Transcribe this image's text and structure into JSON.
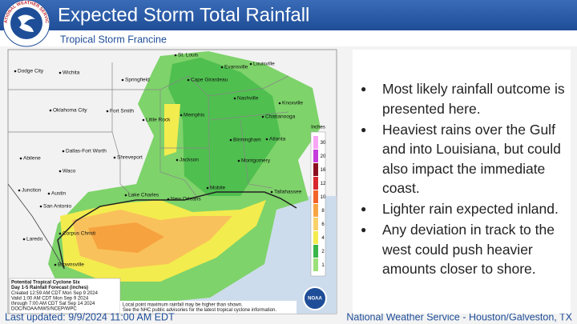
{
  "header": {
    "title": "Expected Storm Total Rainfall",
    "subtitle": "Tropical Storm Francine",
    "logo_text": "NATIONAL WEATHER SERVICE"
  },
  "map": {
    "cities": [
      "Dodge City",
      "Wichita",
      "St. Louis",
      "Evansville",
      "Louisville",
      "Springfield",
      "Cape Girardeau",
      "Nashville",
      "Knoxville",
      "Oklahoma City",
      "Fort Smith",
      "Memphis",
      "Little Rock",
      "Chattanooga",
      "Birmingham",
      "Atlanta",
      "Dallas-Fort Worth",
      "Shreveport",
      "Jackson",
      "Montgomery",
      "Abilene",
      "Waco",
      "Junction",
      "Austin",
      "Lake Charles",
      "New Orleans",
      "Mobile",
      "Tallahassee",
      "San Antonio",
      "Laredo",
      "Corpus Christi",
      "Brownsville"
    ],
    "legend": {
      "title": "Inches",
      "items": [
        {
          "value": 30,
          "color": "#f7a6f5"
        },
        {
          "value": 20,
          "color": "#c53ddb"
        },
        {
          "value": 16,
          "color": "#8b0f1e"
        },
        {
          "value": 12,
          "color": "#d7262e"
        },
        {
          "value": 10,
          "color": "#f2642a"
        },
        {
          "value": 8,
          "color": "#f7a544"
        },
        {
          "value": 6,
          "color": "#f9d16b"
        },
        {
          "value": 4,
          "color": "#f3ec4e"
        },
        {
          "value": 2,
          "color": "#39b54a"
        },
        {
          "value": 1,
          "color": "#9be07a"
        }
      ]
    },
    "info_box": [
      "Potential Tropical Cyclone Six",
      "Day 1-5 Rainfall Forecast (inches)",
      "Created 12:59 AM CDT Mon Sep 9 2024",
      "Valid 1:00 AM CDT Mon Sep 9 2024",
      "through 7:00 AM CDT Sat Sep 14 2024",
      "DOC/NOAA/NWS/NCEP/WPC"
    ],
    "disclaimer": [
      "Local point maximum rainfall may be higher than shown.",
      "See the NHC public advisories for the latest tropical cyclone information."
    ],
    "noaa_logo": "NOAA"
  },
  "bullets": [
    "Most likely rainfall outcome is presented here.",
    "Heaviest rains over the Gulf and into Louisiana, but could also impact the immediate coast.",
    "Lighter rain expected inland.",
    "Any deviation in track to the west could push heavier amounts closer to shore."
  ],
  "footer": {
    "updated": "Last updated: 9/9/2024 11:00 AM EDT",
    "office": "National Weather Service - Houston/Galveston, TX"
  }
}
